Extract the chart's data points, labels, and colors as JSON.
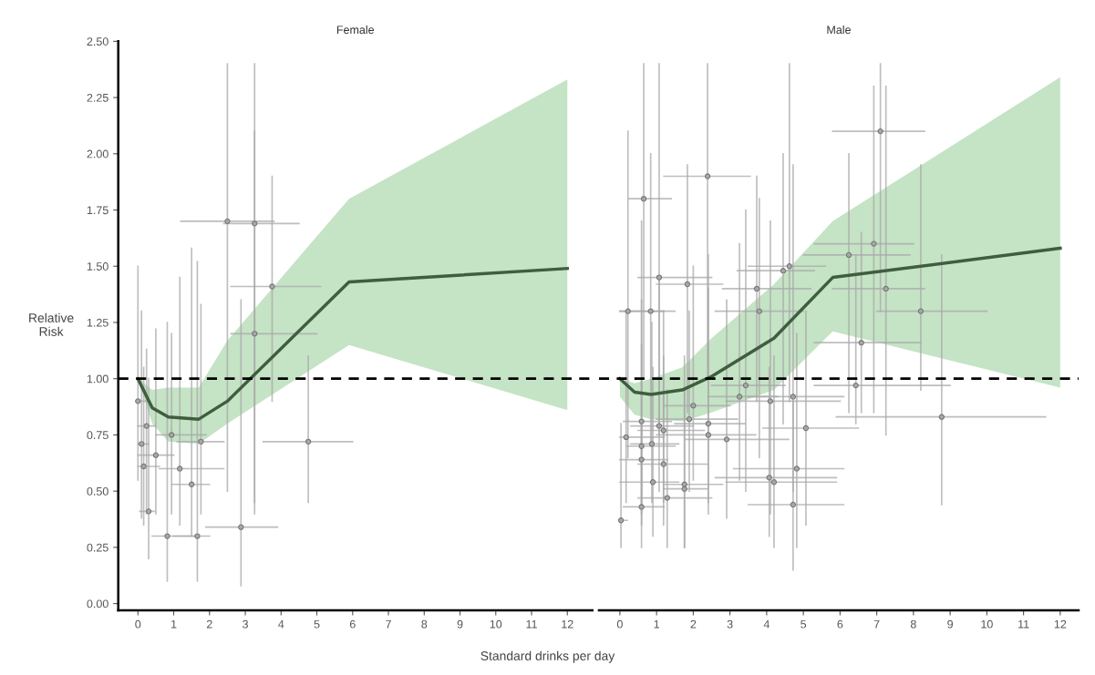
{
  "chart_data": [
    {
      "type": "line",
      "title": "Female",
      "ylabel": "Relative\nRisk",
      "xlabel": "Standard drinks per day",
      "xlim": [
        -0.55,
        12.7
      ],
      "xticks": [
        0,
        1,
        2,
        3,
        4,
        5,
        6,
        7,
        8,
        9,
        10,
        11,
        12
      ],
      "ylim": [
        -0.03,
        2.5
      ],
      "yticks": [
        {
          "value": 0,
          "label": "0.00"
        },
        {
          "value": 0.25,
          "label": "0.25"
        },
        {
          "value": 0.5,
          "label": "0.50"
        },
        {
          "value": 0.75,
          "label": "0.75"
        },
        {
          "value": 1,
          "label": "1.00"
        },
        {
          "value": 1.25,
          "label": "1.25"
        },
        {
          "value": 1.5,
          "label": "1.50"
        },
        {
          "value": 1.75,
          "label": "1.75"
        },
        {
          "value": 2,
          "label": "2.00"
        },
        {
          "value": 2.25,
          "label": "2.25"
        },
        {
          "value": 2.5,
          "label": "2.50"
        }
      ],
      "ref_lines": [
        {
          "axis": "y",
          "value": 1,
          "color": "#000000",
          "line_style": "dashed"
        }
      ],
      "series": [
        {
          "type": "scatter",
          "color": "#a8a8a8",
          "marker": "circle",
          "x": [
            0,
            0.24,
            0.1,
            0.5,
            0.16,
            0.3,
            1.17,
            1.5,
            0.94,
            1.76,
            0.82,
            1.66,
            2.88,
            4.76,
            2.5,
            3.26,
            3.75,
            3.26
          ],
          "values": [
            0.9,
            0.79,
            0.71,
            0.66,
            0.61,
            0.41,
            0.6,
            0.53,
            0.75,
            0.72,
            0.3,
            0.3,
            0.34,
            0.72,
            1.7,
            1.69,
            1.41,
            1.2
          ],
          "xerrors": [
            [
              0,
              0.3
            ],
            [
              0,
              0.5
            ],
            [
              0,
              0.3
            ],
            [
              0,
              1.0
            ],
            [
              0,
              0.6
            ],
            [
              0.05,
              0.45
            ],
            [
              0.6,
              2.4
            ],
            [
              0.95,
              2.0
            ],
            [
              0.5,
              1.9
            ],
            [
              1.1,
              2.4
            ],
            [
              0.4,
              1.6
            ],
            [
              1.0,
              2.0
            ],
            [
              1.9,
              3.9
            ],
            [
              3.5,
              6.0
            ],
            [
              1.2,
              3.8
            ],
            [
              2.4,
              4.5
            ],
            [
              2.6,
              5.1
            ],
            [
              2.6,
              5.0
            ]
          ],
          "errors": [
            [
              0.55,
              1.5
            ],
            [
              0.4,
              1.13
            ],
            [
              0.38,
              1.3
            ],
            [
              0.4,
              1.22
            ],
            [
              0.35,
              1.05
            ],
            [
              0.2,
              1.0
            ],
            [
              0.35,
              1.45
            ],
            [
              0.3,
              1.58
            ],
            [
              0.4,
              1.2
            ],
            [
              0.4,
              1.33
            ],
            [
              0.1,
              1.25
            ],
            [
              0.1,
              1.52
            ],
            [
              0.08,
              1.35
            ],
            [
              0.45,
              1.1
            ],
            [
              0.5,
              2.4
            ],
            [
              0.4,
              2.4
            ],
            [
              0.9,
              1.9
            ],
            [
              0.45,
              2.1
            ]
          ]
        },
        {
          "color": "#3e5e3e",
          "marker": "none",
          "line_style": "solid",
          "x": [
            0,
            0.4,
            0.85,
            1.7,
            2.5,
            5.9,
            12
          ],
          "values": [
            1.0,
            0.87,
            0.83,
            0.82,
            0.9,
            1.43,
            1.49
          ],
          "lower": [
            1.0,
            0.8,
            0.72,
            0.71,
            0.8,
            1.15,
            0.86
          ],
          "upper": [
            1.0,
            0.95,
            0.96,
            0.96,
            1.17,
            1.8,
            2.33
          ]
        }
      ]
    },
    {
      "type": "line",
      "title": "Male",
      "tick_labels": "x",
      "xlim": [
        -0.57,
        12.5
      ],
      "xticks": [
        0,
        1,
        2,
        3,
        4,
        5,
        6,
        7,
        8,
        9,
        10,
        11,
        12
      ],
      "ylim": [
        -0.03,
        2.5
      ],
      "ref_lines": [
        {
          "axis": "y",
          "value": 1,
          "color": "#000000",
          "line_style": "dashed"
        }
      ],
      "series": [
        {
          "type": "scatter",
          "color": "#a8a8a8",
          "marker": "circle",
          "x": [
            7.1,
            2.39,
            0.65,
            1.07,
            4.62,
            4.45,
            6.92,
            6.24,
            7.25,
            8.2,
            0.22,
            0.84,
            1.84,
            3.73,
            3.8,
            6.58,
            6.43,
            8.77,
            4.72,
            4.1,
            5.07,
            2.41,
            2.41,
            2.91,
            1.07,
            1.19,
            0.17,
            0.59,
            0.87,
            0.59,
            1.19,
            4.82,
            4.07,
            4.2,
            0.9,
            1.76,
            1.76,
            1.29,
            0.59,
            4.72,
            0.03,
            1.89,
            2.0,
            3.26,
            3.43,
            0.59
          ],
          "values": [
            2.1,
            1.9,
            1.8,
            1.45,
            1.5,
            1.48,
            1.6,
            1.55,
            1.4,
            1.3,
            1.3,
            1.3,
            1.42,
            1.4,
            1.3,
            1.16,
            0.97,
            0.83,
            0.92,
            0.9,
            0.78,
            0.8,
            0.75,
            0.73,
            0.79,
            0.77,
            0.74,
            0.7,
            0.71,
            0.64,
            0.62,
            0.6,
            0.56,
            0.54,
            0.54,
            0.53,
            0.51,
            0.47,
            0.43,
            0.44,
            0.37,
            0.82,
            0.88,
            0.92,
            0.97,
            0.81
          ],
          "xerrors": [
            [
              5.8,
              8.3
            ],
            [
              1.2,
              3.55
            ],
            [
              0.25,
              1.4
            ],
            [
              0.5,
              2.5
            ],
            [
              3.5,
              5.6
            ],
            [
              3.2,
              5.3
            ],
            [
              5.3,
              8.0
            ],
            [
              5.0,
              7.9
            ],
            [
              5.8,
              8.3
            ],
            [
              7.0,
              10.0
            ],
            [
              0,
              1.2
            ],
            [
              0,
              1.5
            ],
            [
              1.0,
              2.8
            ],
            [
              2.8,
              5.2
            ],
            [
              2.6,
              5.0
            ],
            [
              5.3,
              8.2
            ],
            [
              5.3,
              9.0
            ],
            [
              5.9,
              11.6
            ],
            [
              3.5,
              6.1
            ],
            [
              2.9,
              6.0
            ],
            [
              3.9,
              6.5
            ],
            [
              1.5,
              3.4
            ],
            [
              1.0,
              3.7
            ],
            [
              1.8,
              4.6
            ],
            [
              0.3,
              2.0
            ],
            [
              0.5,
              2.3
            ],
            [
              0,
              1.2
            ],
            [
              0.2,
              1.5
            ],
            [
              0.3,
              1.6
            ],
            [
              0,
              1.3
            ],
            [
              0.5,
              2.4
            ],
            [
              3.1,
              6.1
            ],
            [
              2.6,
              5.9
            ],
            [
              2.9,
              5.9
            ],
            [
              0,
              1.6
            ],
            [
              1.2,
              2.8
            ],
            [
              1.2,
              2.4
            ],
            [
              0.5,
              2.5
            ],
            [
              0.1,
              1.2
            ],
            [
              3.5,
              6.1
            ],
            [
              0,
              0.2
            ],
            [
              1.0,
              3.2
            ],
            [
              1.2,
              3.0
            ],
            [
              2.4,
              4.3
            ],
            [
              2.5,
              4.5
            ],
            [
              0.1,
              1.4
            ]
          ],
          "errors": [
            [
              1.3,
              2.4
            ],
            [
              1.0,
              2.4
            ],
            [
              1.0,
              2.4
            ],
            [
              0.75,
              2.4
            ],
            [
              0.9,
              2.4
            ],
            [
              0.8,
              2.0
            ],
            [
              0.85,
              2.3
            ],
            [
              0.85,
              2.0
            ],
            [
              0.75,
              2.3
            ],
            [
              0.95,
              1.95
            ],
            [
              0.65,
              2.1
            ],
            [
              0.7,
              2.0
            ],
            [
              0.85,
              1.95
            ],
            [
              0.9,
              1.9
            ],
            [
              0.65,
              1.8
            ],
            [
              0.85,
              1.65
            ],
            [
              0.8,
              1.55
            ],
            [
              0.44,
              1.55
            ],
            [
              0.5,
              1.95
            ],
            [
              0.4,
              1.7
            ],
            [
              0.35,
              1.3
            ],
            [
              0.4,
              1.55
            ],
            [
              0.45,
              1.4
            ],
            [
              0.38,
              1.35
            ],
            [
              0.5,
              1.45
            ],
            [
              0.45,
              1.3
            ],
            [
              0.45,
              1.3
            ],
            [
              0.4,
              1.35
            ],
            [
              0.45,
              1.25
            ],
            [
              0.35,
              1.15
            ],
            [
              0.35,
              1.1
            ],
            [
              0.25,
              1.2
            ],
            [
              0.3,
              1.05
            ],
            [
              0.25,
              1.1
            ],
            [
              0.3,
              1.05
            ],
            [
              0.25,
              1.1
            ],
            [
              0.25,
              0.95
            ],
            [
              0.25,
              0.95
            ],
            [
              0.25,
              0.8
            ],
            [
              0.15,
              0.9
            ],
            [
              0.25,
              0.8
            ],
            [
              0.5,
              1.3
            ],
            [
              0.55,
              1.5
            ],
            [
              0.55,
              1.6
            ],
            [
              0.5,
              1.75
            ],
            [
              0.45,
              1.7
            ]
          ]
        },
        {
          "color": "#3e5e3e",
          "marker": "none",
          "line_style": "solid",
          "x": [
            0,
            0.4,
            0.85,
            1.7,
            2.5,
            4.2,
            5.8,
            12
          ],
          "values": [
            1.0,
            0.94,
            0.93,
            0.95,
            1.01,
            1.18,
            1.45,
            1.58
          ],
          "lower": [
            0.92,
            0.84,
            0.82,
            0.81,
            0.85,
            0.95,
            1.21,
            0.96
          ],
          "upper": [
            1.0,
            0.98,
            1.0,
            1.05,
            1.18,
            1.42,
            1.7,
            2.34
          ]
        }
      ]
    }
  ]
}
